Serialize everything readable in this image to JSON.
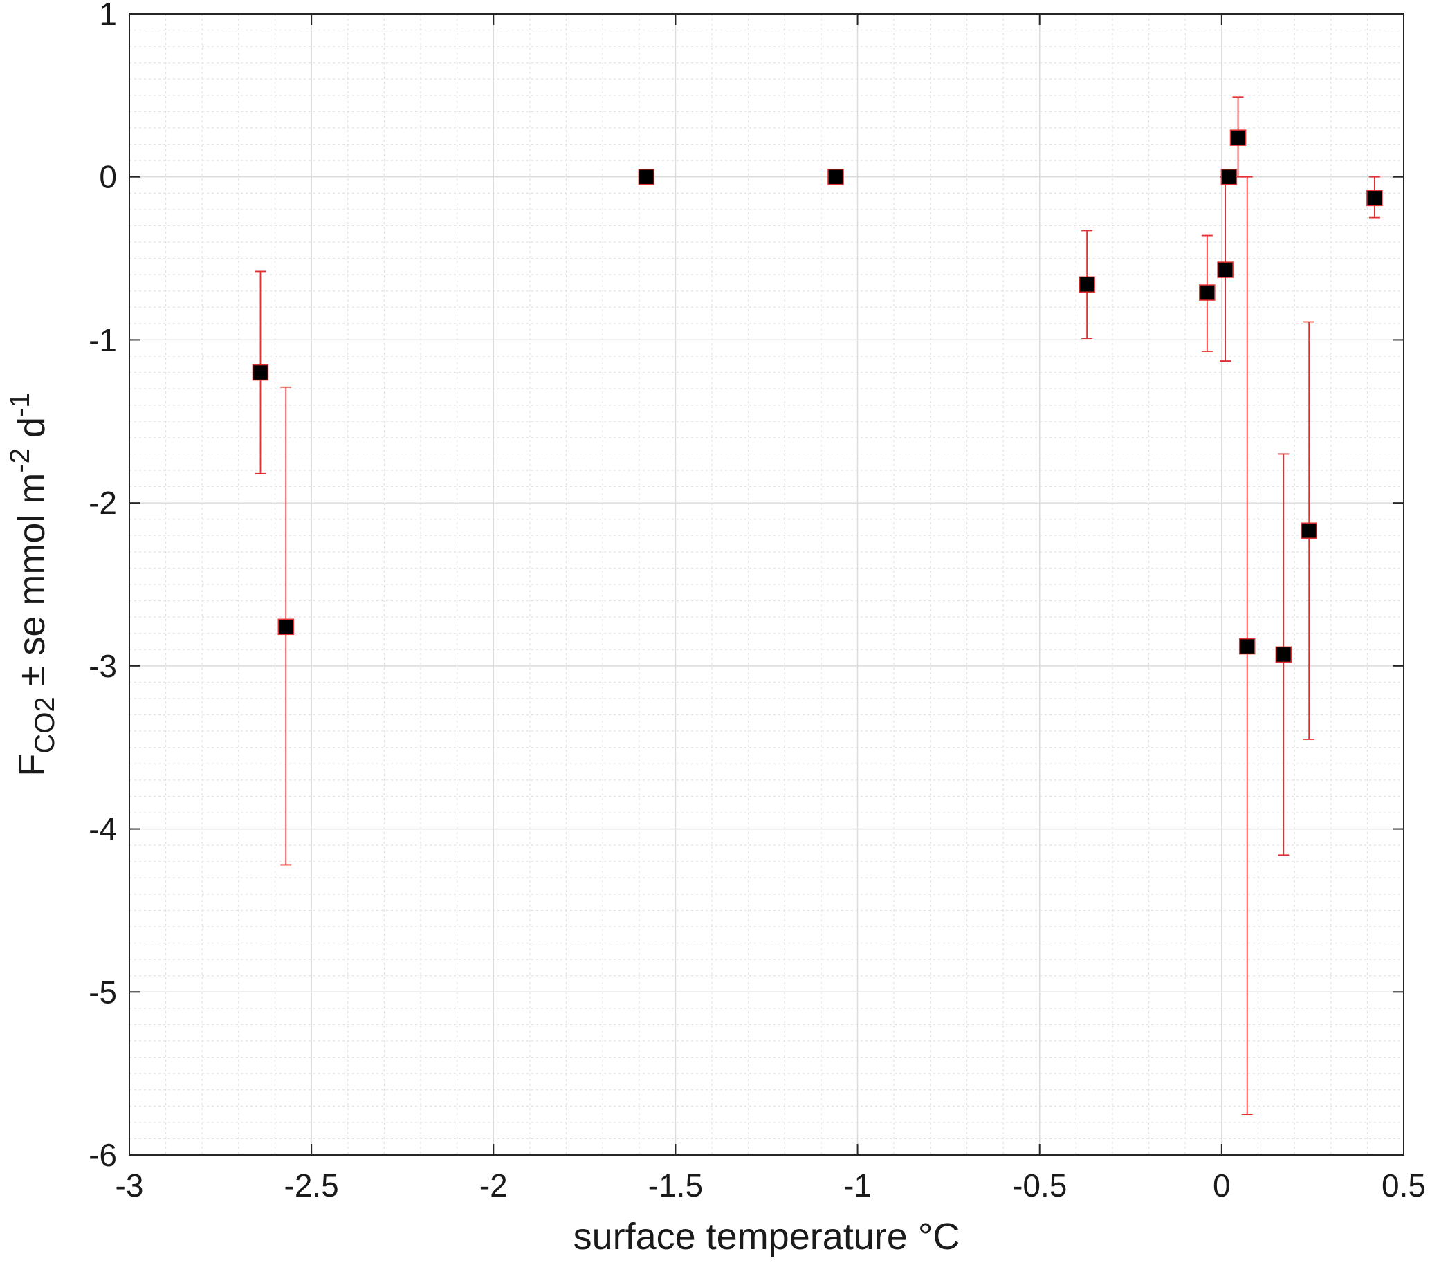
{
  "chart_data": {
    "type": "scatter",
    "xlabel": "surface temperature °C",
    "ylabel": {
      "main": "F",
      "sub": "CO2",
      "rest": " ± se  mmol m",
      "sup1": "-2",
      "mid": " d",
      "sup2": "-1"
    },
    "xlim": [
      -3,
      0.5
    ],
    "ylim": [
      -6,
      1
    ],
    "xticks": [
      -3,
      -2.5,
      -2,
      -1.5,
      -1,
      -0.5,
      0,
      0.5
    ],
    "xtick_labels": [
      "-3",
      "-2.5",
      "-2",
      "-1.5",
      "-1",
      "-0.5",
      "0",
      "0.5"
    ],
    "yticks": [
      1,
      0,
      -1,
      -2,
      -3,
      -4,
      -5,
      -6
    ],
    "ytick_labels": [
      "1",
      "0",
      "-1",
      "-2",
      "-3",
      "-4",
      "-5",
      "-6"
    ],
    "grid": true,
    "minor_grid": true,
    "marker_color": "#000000",
    "marker_edge_color": "#e03030",
    "errorbar_color": "#e03030",
    "points": [
      {
        "x": -2.64,
        "y": -1.2,
        "lo": -1.82,
        "hi": -0.58
      },
      {
        "x": -2.57,
        "y": -2.76,
        "lo": -4.22,
        "hi": -1.29
      },
      {
        "x": -1.58,
        "y": 0.0,
        "lo": 0.0,
        "hi": 0.0
      },
      {
        "x": -1.06,
        "y": 0.0,
        "lo": 0.0,
        "hi": 0.0
      },
      {
        "x": -0.37,
        "y": -0.66,
        "lo": -0.99,
        "hi": -0.33
      },
      {
        "x": -0.04,
        "y": -0.71,
        "lo": -1.07,
        "hi": -0.36
      },
      {
        "x": 0.01,
        "y": -0.57,
        "lo": -1.13,
        "hi": 0.0
      },
      {
        "x": 0.02,
        "y": 0.0,
        "lo": 0.0,
        "hi": 0.0
      },
      {
        "x": 0.045,
        "y": 0.24,
        "lo": 0.0,
        "hi": 0.49
      },
      {
        "x": 0.07,
        "y": -2.88,
        "lo": -5.75,
        "hi": 0.0
      },
      {
        "x": 0.17,
        "y": -2.93,
        "lo": -4.16,
        "hi": -1.7
      },
      {
        "x": 0.24,
        "y": -2.17,
        "lo": -3.45,
        "hi": -0.89
      },
      {
        "x": 0.42,
        "y": -0.13,
        "lo": -0.25,
        "hi": 0.0
      }
    ]
  }
}
